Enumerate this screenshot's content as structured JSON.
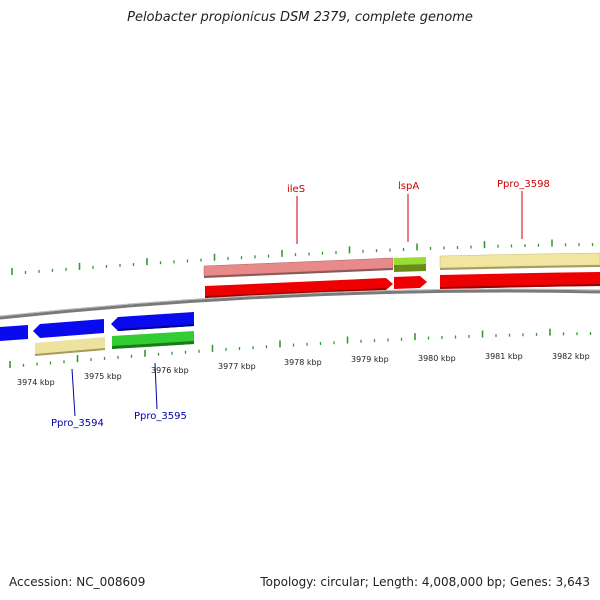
{
  "title": "Pelobacter propionicus DSM 2379, complete genome",
  "footer": {
    "accession": "Accession: NC_008609",
    "topology": "Topology: circular; Length: 4,008,000 bp; Genes: 3,643"
  },
  "scale": {
    "unit": "kbp",
    "tick_labels": [
      "3974 kbp",
      "3975 kbp",
      "3976 kbp",
      "3977 kbp",
      "3978 kbp",
      "3979 kbp",
      "3980 kbp",
      "3981 kbp",
      "3982 kbp"
    ]
  },
  "colors": {
    "forward_cds": "#ee0000",
    "forward_gene_light": "#e88080",
    "reverse_cds": "#0a0aee",
    "reverse_gene_light": "#e8e0a0",
    "green_cds": "#33cc33",
    "lime_gene": "#99dd33",
    "olive_gene": "#6a8a1a",
    "khaki_gene": "#f0e8a0",
    "backbone": "#888888",
    "forward_label": "#cc0000",
    "reverse_label": "#0000aa",
    "tick_mark": "#339933"
  },
  "genes": [
    {
      "label": "ileS",
      "strand": "forward",
      "color": "#cc0000"
    },
    {
      "label": "lspA",
      "strand": "forward",
      "color": "#cc0000"
    },
    {
      "label": "Ppro_3598",
      "strand": "forward",
      "color": "#cc0000"
    },
    {
      "label": "Ppro_3594",
      "strand": "reverse",
      "color": "#0000aa"
    },
    {
      "label": "Ppro_3595",
      "strand": "reverse",
      "color": "#0000aa"
    }
  ]
}
